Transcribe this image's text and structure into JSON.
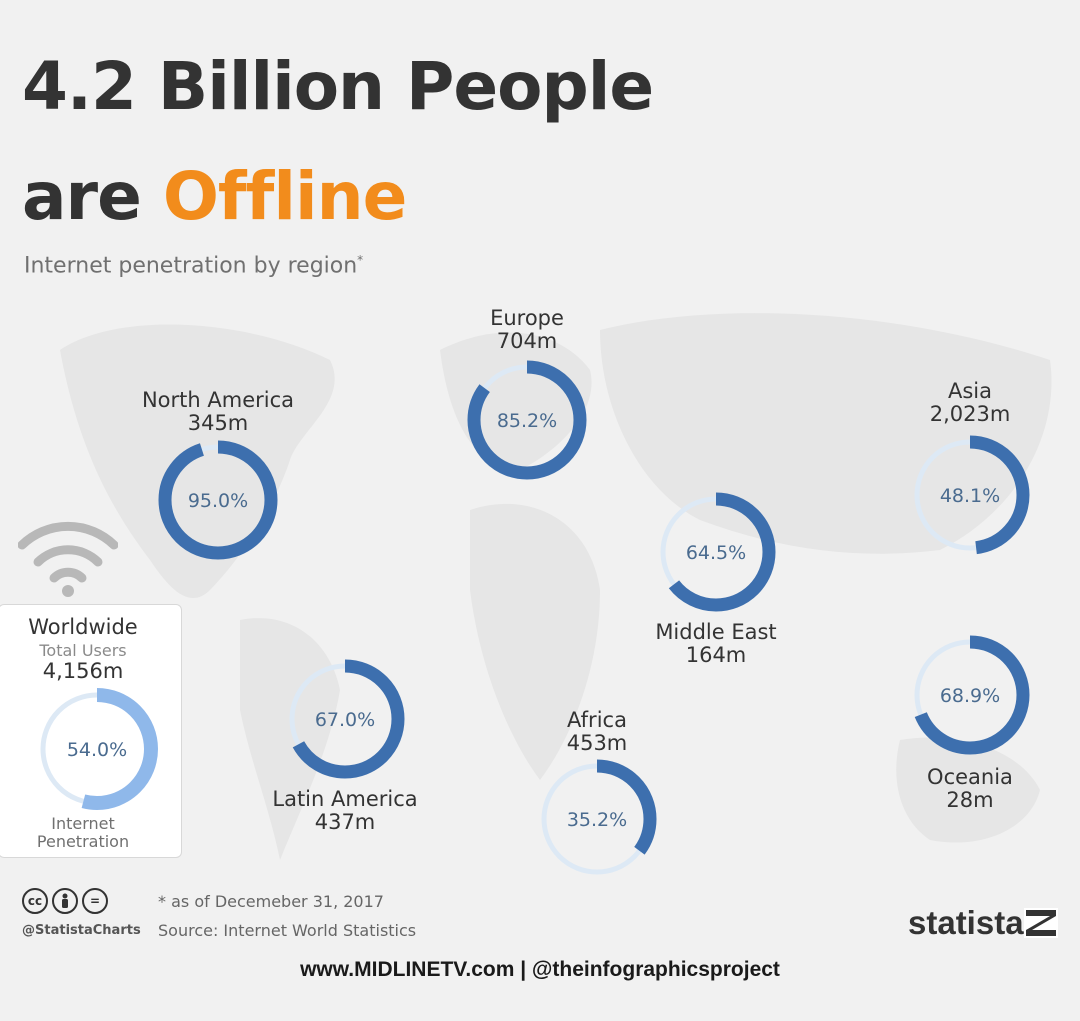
{
  "title": {
    "line1": "4.2 Billion People",
    "line2_prefix": "are ",
    "line2_accent": "Offline"
  },
  "subtitle": "Internet penetration by region",
  "subtitle_mark": "*",
  "colors": {
    "accent": "#f28c1c",
    "ring_fill": "#3d6fae",
    "ring_track": "#dde9f5",
    "worldwide_fill": "#8fb8ea",
    "text": "#333333"
  },
  "chart_data": {
    "type": "donut",
    "title": "4.2 Billion People are Offline",
    "subtitle": "Internet penetration by region",
    "series": [
      {
        "name": "North America",
        "users": "345m",
        "penetration": 95.0,
        "label": "95.0%"
      },
      {
        "name": "Europe",
        "users": "704m",
        "penetration": 85.2,
        "label": "85.2%"
      },
      {
        "name": "Asia",
        "users": "2,023m",
        "penetration": 48.1,
        "label": "48.1%"
      },
      {
        "name": "Middle East",
        "users": "164m",
        "penetration": 64.5,
        "label": "64.5%"
      },
      {
        "name": "Latin America",
        "users": "437m",
        "penetration": 67.0,
        "label": "67.0%"
      },
      {
        "name": "Africa",
        "users": "453m",
        "penetration": 35.2,
        "label": "35.2%"
      },
      {
        "name": "Oceania",
        "users": "28m",
        "penetration": 68.9,
        "label": "68.9%"
      }
    ],
    "worldwide": {
      "title": "Worldwide",
      "sub": "Total Users",
      "users": "4,156m",
      "penetration": 54.0,
      "label": "54.0%",
      "footer_line1": "Internet",
      "footer_line2": "Penetration"
    }
  },
  "footer": {
    "license_icons": [
      "cc",
      "by",
      "="
    ],
    "handle": "@StatistaCharts",
    "footnote": "* as of Decemeber 31, 2017",
    "source": "Source: Internet World Statistics",
    "brand": "statista",
    "credit": "www.MIDLINETV.com | @theinfographicsproject"
  }
}
